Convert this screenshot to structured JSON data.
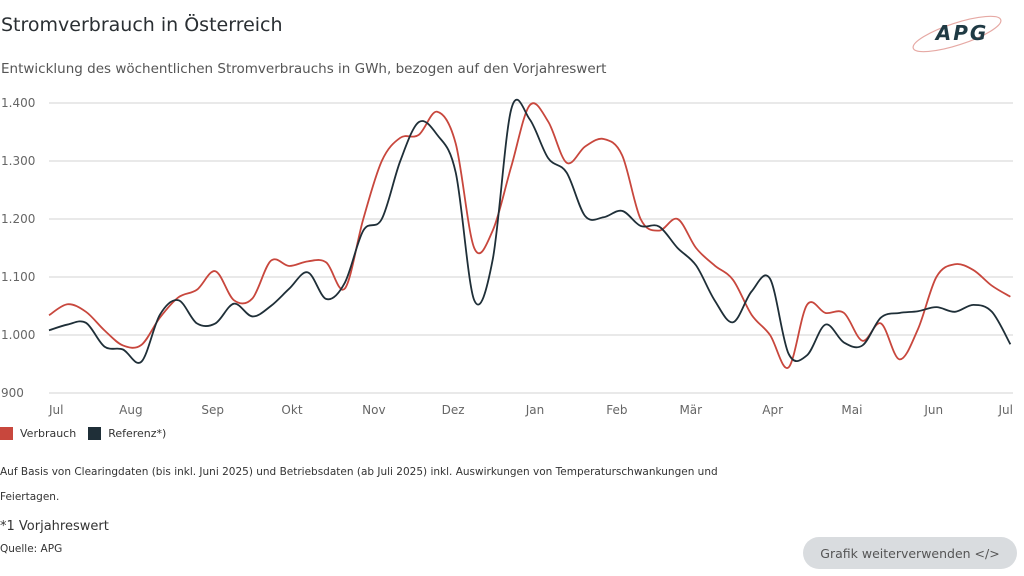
{
  "header": {
    "title": "Stromverbrauch in Österreich",
    "subtitle": "Entwicklung des wöchentlichen Stromverbrauchs in GWh, bezogen auf den Vorjahreswert",
    "logo_text": "APG"
  },
  "chart_data": {
    "type": "line",
    "title": "Stromverbrauch in Österreich",
    "subtitle": "Entwicklung des wöchentlichen Stromverbrauchs in GWh, bezogen auf den Vorjahreswert",
    "xlabel": "",
    "ylabel": "",
    "ylim": [
      900,
      1400
    ],
    "xlim": [
      "2024-07-01",
      "2025-07-01"
    ],
    "grid": true,
    "legend_position": "bottom-left",
    "y_ticks": [
      "900",
      "1.000",
      "1.100",
      "1.200",
      "1.300",
      "1.400"
    ],
    "y_tick_values": [
      900,
      1000,
      1100,
      1200,
      1300,
      1400
    ],
    "x_ticks": [
      "Jul",
      "Aug",
      "Sep",
      "Okt",
      "Nov",
      "Dez",
      "Jan",
      "Feb",
      "Mär",
      "Apr",
      "Mai",
      "Jun",
      "Jul"
    ],
    "x_tick_dates": [
      "2024-07-01",
      "2024-08-01",
      "2024-09-01",
      "2024-10-01",
      "2024-11-01",
      "2024-12-01",
      "2025-01-01",
      "2025-02-01",
      "2025-03-01",
      "2025-04-01",
      "2025-05-01",
      "2025-06-01",
      "2025-07-01"
    ],
    "x_start": "2024-07-01",
    "x_step_days": 7,
    "series": [
      {
        "name": "Verbrauch",
        "color": "#c8473d",
        "values": [
          1034,
          1053,
          1040,
          1008,
          982,
          983,
          1030,
          1065,
          1078,
          1110,
          1060,
          1063,
          1128,
          1119,
          1127,
          1125,
          1080,
          1200,
          1300,
          1340,
          1345,
          1385,
          1330,
          1150,
          1180,
          1290,
          1396,
          1368,
          1297,
          1325,
          1338,
          1310,
          1200,
          1180,
          1200,
          1150,
          1120,
          1095,
          1035,
          1000,
          944,
          1052,
          1038,
          1038,
          990,
          1020,
          958,
          1010,
          1100,
          1122,
          1112,
          1085,
          1066
        ]
      },
      {
        "name": "Referenz*)",
        "color": "#1f2f38",
        "values": [
          1008,
          1018,
          1021,
          980,
          975,
          954,
          1035,
          1060,
          1020,
          1020,
          1054,
          1032,
          1050,
          1080,
          1108,
          1062,
          1090,
          1180,
          1200,
          1300,
          1367,
          1345,
          1280,
          1060,
          1130,
          1389,
          1372,
          1305,
          1280,
          1205,
          1203,
          1214,
          1188,
          1187,
          1150,
          1120,
          1060,
          1022,
          1075,
          1097,
          968,
          965,
          1018,
          987,
          982,
          1030,
          1038,
          1041,
          1048,
          1040,
          1052,
          1040,
          984
        ]
      }
    ]
  },
  "legend": [
    {
      "label": "Verbrauch",
      "color": "#c8473d"
    },
    {
      "label": "Referenz*)",
      "color": "#1f2f38"
    }
  ],
  "notes": {
    "line1": "Auf Basis von Clearingdaten (bis inkl. Juni 2025) und Betriebsdaten (ab Juli 2025) inkl. Auswirkungen von Temperaturschwankungen und",
    "line2": "Feiertagen.",
    "footnote": "*1 Vorjahreswert",
    "source": "Quelle: APG"
  },
  "actions": {
    "reuse_button": "Grafik weiterverwenden </>"
  }
}
